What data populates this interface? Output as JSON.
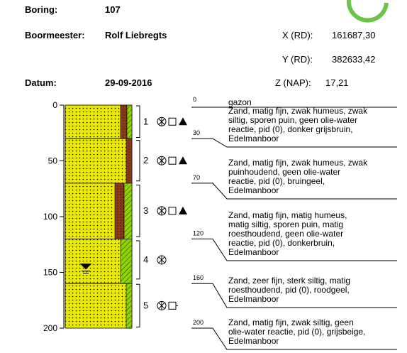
{
  "header": {
    "boring_label": "Boring:",
    "boring": "107",
    "boormeester_label": "Boormeester:",
    "boormeester": "Rolf Liebregts",
    "datum_label": "Datum:",
    "datum": "29-09-2016",
    "x_label": "X (RD):",
    "x": "161687,30",
    "y_label": "Y (RD):",
    "y": "382633,42",
    "z_label": "Z (NAP):",
    "z": "17,21"
  },
  "depth_axis": {
    "lim": [
      0,
      200
    ],
    "ticks": [
      0,
      50,
      100,
      150,
      200
    ]
  },
  "surface": "gazon",
  "boundaries": [
    0,
    30,
    70,
    120,
    160,
    200
  ],
  "descriptions": [
    [
      "Zand, matig fijn, zwak humeus, zwak",
      "siltig, sporen puin, geen olie-water",
      "reactie, pid (0), donker grijsbruin,",
      "Edelmanboor"
    ],
    [
      "Zand, matig fijn, zwak humeus, zwak",
      "puinhoudend, geen olie-water",
      "reactie, pid (0), bruingeel,",
      "Edelmanboor"
    ],
    [
      "Zand, matig fijn, matig humeus,",
      "matig siltig, sporen puin, matig",
      "roesthoudend, geen olie-water",
      "reactie, pid (0), donkerbruin,",
      "Edelmanboor"
    ],
    [
      "Zand, zeer fijn, sterk siltig, matig",
      "roesthoudend, pid (0), roodgeel,",
      "Edelmanboor"
    ],
    [
      "Zand, matig fijn, zwak siltig, geen",
      "olie-water reactie, pid (0), grijsbeige,",
      "Edelmanboor"
    ]
  ],
  "samples": [
    {
      "number": 1,
      "top": 0,
      "bottom": 29
    },
    {
      "number": 2,
      "top": 31,
      "bottom": 68
    },
    {
      "number": 3,
      "top": 71,
      "bottom": 118
    },
    {
      "number": 4,
      "top": 121,
      "bottom": 156
    },
    {
      "number": 5,
      "top": 160,
      "bottom": 199
    }
  ]
}
